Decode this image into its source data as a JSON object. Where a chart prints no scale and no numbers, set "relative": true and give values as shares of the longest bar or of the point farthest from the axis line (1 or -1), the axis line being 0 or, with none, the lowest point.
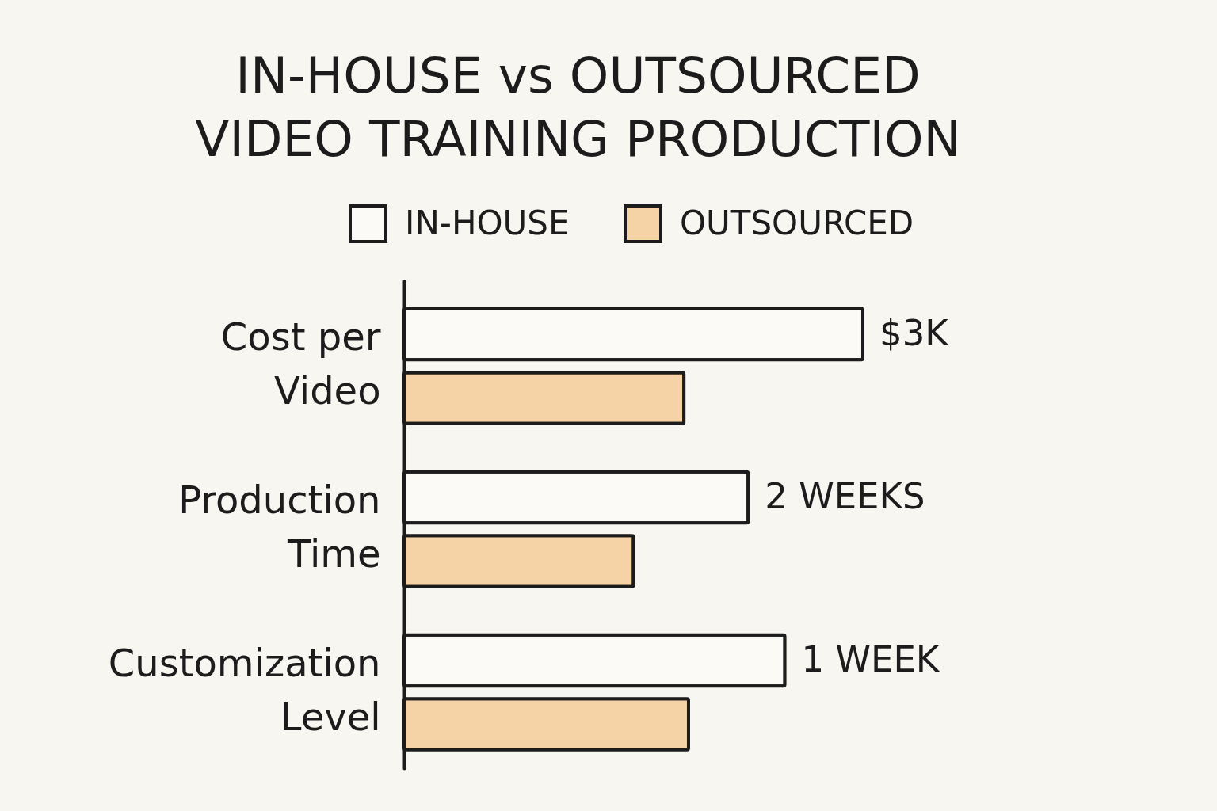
{
  "chart_data": {
    "type": "bar",
    "orientation": "horizontal",
    "relative": true,
    "title": "IN-HOUSE vs OUTSOURCED VIDEO TRAINING PRODUCTION",
    "categories": [
      "Cost per Video",
      "Production Time",
      "Customization Level"
    ],
    "series": [
      {
        "name": "IN-HOUSE",
        "color": "#fbfaf6",
        "values": [
          1,
          0.75,
          0.83
        ]
      },
      {
        "name": "OUTSOURCED",
        "color": "#f5d3a6",
        "values": [
          0.61,
          0.5,
          0.62
        ]
      }
    ],
    "annotations": [
      "$3K",
      "2 WEEKS",
      "1 WEEK"
    ],
    "legend": "top"
  }
}
